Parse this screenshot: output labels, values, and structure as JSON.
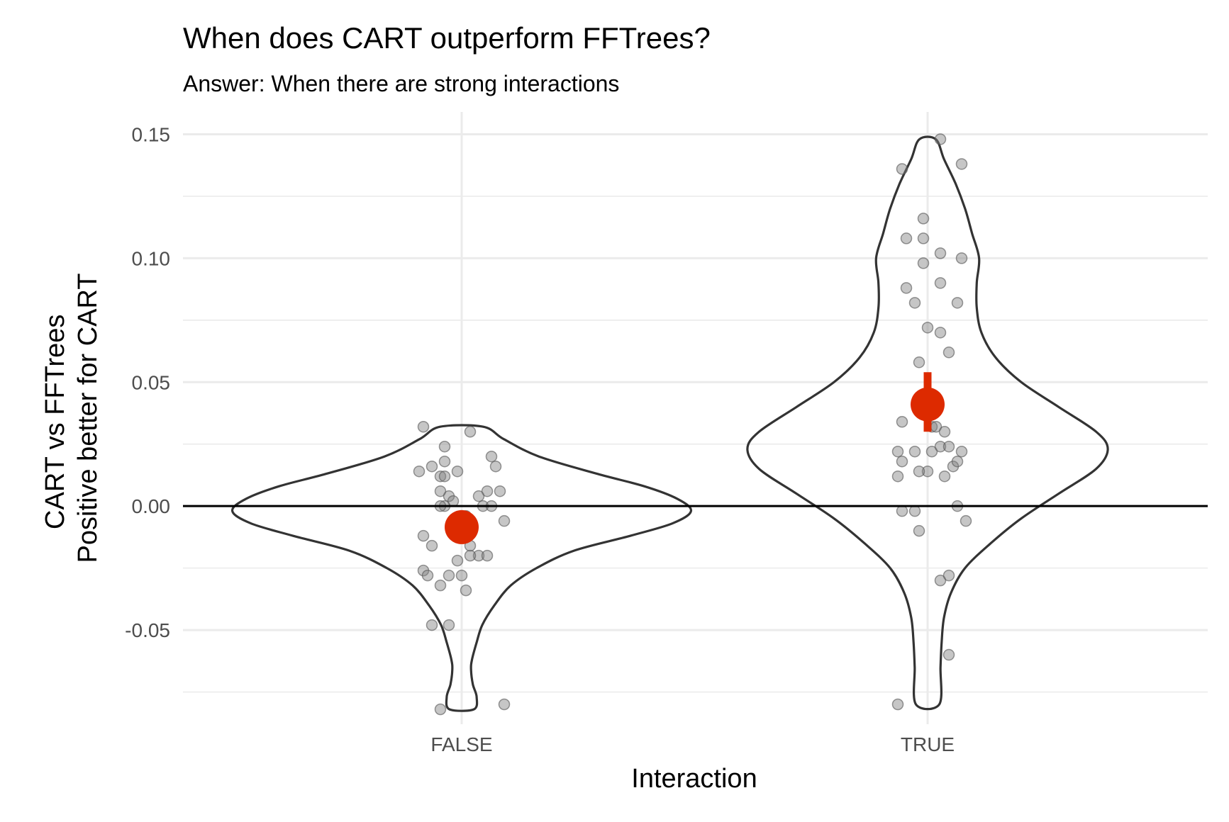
{
  "chart_data": {
    "type": "violin",
    "title": "When does CART outperform FFTrees?",
    "subtitle": "Answer: When there are strong interactions",
    "xlabel": "Interaction",
    "ylabel_lines": [
      "CART vs FFTrees",
      "Positive better for CART"
    ],
    "categories": [
      "FALSE",
      "TRUE"
    ],
    "ylim": [
      -0.088,
      0.159
    ],
    "y_ticks": [
      -0.05,
      0.0,
      0.05,
      0.1,
      0.15
    ],
    "y_tick_labels": [
      "-0.05",
      "0.00",
      "0.05",
      "0.10",
      "0.15"
    ],
    "y_minor_ticks": [
      -0.075,
      -0.025,
      0.025,
      0.075,
      0.125
    ],
    "reference_line_y": 0,
    "grid": true,
    "colors": {
      "violin_outline": "#333333",
      "points": "#808080",
      "mean": "#dd2a00",
      "reference_line": "#000000"
    },
    "groups": [
      {
        "category": "FALSE",
        "violin_profile": [
          [
            0.032,
            0.092
          ],
          [
            0.027,
            0.18
          ],
          [
            0.02,
            0.33
          ],
          [
            0.013,
            0.58
          ],
          [
            0.008,
            0.78
          ],
          [
            0.003,
            0.92
          ],
          [
            -0.002,
            0.98
          ],
          [
            -0.007,
            0.9
          ],
          [
            -0.012,
            0.72
          ],
          [
            -0.018,
            0.48
          ],
          [
            -0.025,
            0.32
          ],
          [
            -0.032,
            0.21
          ],
          [
            -0.04,
            0.14
          ],
          [
            -0.048,
            0.088
          ],
          [
            -0.055,
            0.064
          ],
          [
            -0.062,
            0.044
          ],
          [
            -0.066,
            0.04
          ],
          [
            -0.072,
            0.048
          ],
          [
            -0.077,
            0.064
          ],
          [
            -0.082,
            0.052
          ]
        ],
        "points": [
          [
            -0.09,
            0.032
          ],
          [
            0.02,
            0.03
          ],
          [
            -0.04,
            0.024
          ],
          [
            -0.04,
            0.018
          ],
          [
            0.07,
            0.02
          ],
          [
            -0.07,
            0.016
          ],
          [
            0.08,
            0.016
          ],
          [
            -0.1,
            0.014
          ],
          [
            -0.01,
            0.014
          ],
          [
            -0.05,
            0.012
          ],
          [
            -0.04,
            0.012
          ],
          [
            -0.05,
            0.006
          ],
          [
            -0.03,
            0.004
          ],
          [
            0.06,
            0.006
          ],
          [
            0.09,
            0.006
          ],
          [
            0.04,
            0.004
          ],
          [
            -0.02,
            0.002
          ],
          [
            -0.04,
            0.0
          ],
          [
            -0.05,
            0.0
          ],
          [
            0.05,
            0.0
          ],
          [
            0.07,
            0.0
          ],
          [
            0.01,
            -0.004
          ],
          [
            0.1,
            -0.006
          ],
          [
            -0.09,
            -0.012
          ],
          [
            -0.07,
            -0.016
          ],
          [
            0.02,
            -0.016
          ],
          [
            0.04,
            -0.02
          ],
          [
            0.06,
            -0.02
          ],
          [
            0.02,
            -0.02
          ],
          [
            -0.09,
            -0.026
          ],
          [
            -0.08,
            -0.028
          ],
          [
            -0.03,
            -0.028
          ],
          [
            0.0,
            -0.028
          ],
          [
            -0.01,
            -0.022
          ],
          [
            -0.05,
            -0.032
          ],
          [
            0.01,
            -0.034
          ],
          [
            -0.07,
            -0.048
          ],
          [
            -0.03,
            -0.048
          ],
          [
            -0.05,
            -0.082
          ],
          [
            0.1,
            -0.08
          ]
        ],
        "mean": -0.0085,
        "ci": [
          -0.0115,
          -0.0055
        ]
      },
      {
        "category": "TRUE",
        "violin_profile": [
          [
            0.148,
            0.035
          ],
          [
            0.14,
            0.07
          ],
          [
            0.13,
            0.12
          ],
          [
            0.12,
            0.16
          ],
          [
            0.11,
            0.19
          ],
          [
            0.1,
            0.22
          ],
          [
            0.09,
            0.21
          ],
          [
            0.08,
            0.21
          ],
          [
            0.07,
            0.23
          ],
          [
            0.06,
            0.29
          ],
          [
            0.05,
            0.4
          ],
          [
            0.04,
            0.56
          ],
          [
            0.03,
            0.72
          ],
          [
            0.023,
            0.77
          ],
          [
            0.015,
            0.72
          ],
          [
            0.005,
            0.56
          ],
          [
            -0.005,
            0.4
          ],
          [
            -0.015,
            0.27
          ],
          [
            -0.025,
            0.16
          ],
          [
            -0.035,
            0.1
          ],
          [
            -0.045,
            0.07
          ],
          [
            -0.055,
            0.06
          ],
          [
            -0.065,
            0.055
          ],
          [
            -0.08,
            0.05
          ]
        ],
        "points": [
          [
            -0.06,
            0.136
          ],
          [
            0.03,
            0.148
          ],
          [
            0.08,
            0.138
          ],
          [
            -0.01,
            0.116
          ],
          [
            -0.05,
            0.108
          ],
          [
            -0.01,
            0.108
          ],
          [
            0.03,
            0.102
          ],
          [
            0.08,
            0.1
          ],
          [
            -0.01,
            0.098
          ],
          [
            0.03,
            0.09
          ],
          [
            -0.03,
            0.082
          ],
          [
            0.07,
            0.082
          ],
          [
            -0.05,
            0.088
          ],
          [
            0.03,
            0.07
          ],
          [
            0.05,
            0.062
          ],
          [
            0.0,
            0.072
          ],
          [
            -0.02,
            0.058
          ],
          [
            -0.06,
            0.034
          ],
          [
            0.0,
            0.036
          ],
          [
            0.01,
            0.032
          ],
          [
            0.02,
            0.032
          ],
          [
            0.04,
            0.03
          ],
          [
            -0.07,
            0.022
          ],
          [
            -0.03,
            0.022
          ],
          [
            0.01,
            0.022
          ],
          [
            0.03,
            0.024
          ],
          [
            0.05,
            0.024
          ],
          [
            0.08,
            0.022
          ],
          [
            -0.06,
            0.018
          ],
          [
            -0.07,
            0.012
          ],
          [
            0.0,
            0.014
          ],
          [
            -0.02,
            0.014
          ],
          [
            0.06,
            0.016
          ],
          [
            0.04,
            0.012
          ],
          [
            0.07,
            0.018
          ],
          [
            0.07,
            0.0
          ],
          [
            0.09,
            -0.006
          ],
          [
            -0.06,
            -0.002
          ],
          [
            -0.03,
            -0.002
          ],
          [
            -0.02,
            -0.01
          ],
          [
            0.03,
            -0.03
          ],
          [
            0.05,
            -0.028
          ],
          [
            0.05,
            -0.06
          ],
          [
            -0.07,
            -0.08
          ]
        ],
        "mean": 0.041,
        "ci": [
          0.03,
          0.054
        ]
      }
    ]
  }
}
